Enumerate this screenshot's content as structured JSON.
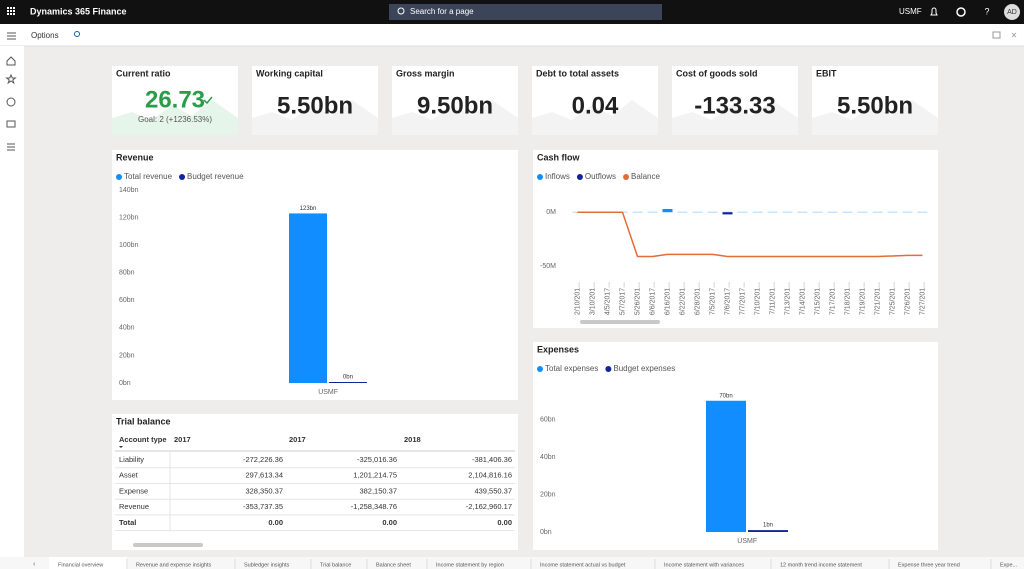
{
  "header": {
    "app": "Dynamics 365 Finance",
    "search": "Search for a page",
    "company": "USMF",
    "avatar": "AD"
  },
  "toolbar": {
    "options": "Options"
  },
  "kpis": [
    {
      "title": "Current ratio",
      "value": "26.73",
      "goal": "Goal: 2 (+1236.53%)"
    },
    {
      "title": "Working capital",
      "value": "5.50bn"
    },
    {
      "title": "Gross margin",
      "value": "9.50bn"
    },
    {
      "title": "Debt to total assets",
      "value": "0.04"
    },
    {
      "title": "Cost of goods sold",
      "value": "-133.33"
    },
    {
      "title": "EBIT",
      "value": "5.50bn"
    }
  ],
  "revenue": {
    "type": "bar",
    "title": "Revenue",
    "categories": [
      "USMF"
    ],
    "series": [
      {
        "name": "Total revenue",
        "color": "#118dff",
        "values": [
          123
        ],
        "value_labels": [
          "123bn"
        ]
      },
      {
        "name": "Budget revenue",
        "color": "#12239e",
        "values": [
          0
        ],
        "value_labels": [
          "0bn"
        ]
      }
    ],
    "ylim": [
      0,
      140
    ],
    "yticks": [
      {
        "value": 0,
        "label": "0bn"
      },
      {
        "value": 20,
        "label": "20bn"
      },
      {
        "value": 40,
        "label": "40bn"
      },
      {
        "value": 60,
        "label": "60bn"
      },
      {
        "value": 80,
        "label": "80bn"
      },
      {
        "value": 100,
        "label": "100bn"
      },
      {
        "value": 120,
        "label": "120bn"
      },
      {
        "value": 140,
        "label": "140bn"
      }
    ]
  },
  "cash_flow": {
    "type": "combo",
    "title": "Cash flow",
    "categories": [
      "2/10/201...",
      "3/10/201...",
      "4/5/2017...",
      "5/7/2017...",
      "5/26/201...",
      "6/6/2017...",
      "6/16/201...",
      "6/22/201...",
      "6/28/201...",
      "7/5/2017...",
      "7/6/2017...",
      "7/7/2017...",
      "7/10/201...",
      "7/11/201...",
      "7/13/201...",
      "7/14/201...",
      "7/15/201...",
      "7/17/201...",
      "7/18/201...",
      "7/19/201...",
      "7/21/201...",
      "7/25/201...",
      "7/26/201...",
      "7/27/201..."
    ],
    "series": [
      {
        "name": "Inflows",
        "color": "#118dff",
        "values": [
          0.5,
          0.5,
          0.5,
          0.5,
          0.5,
          0.5,
          3,
          0.5,
          0.5,
          0.5,
          0.5,
          0.5,
          0.5,
          0.5,
          0.5,
          0.5,
          0.5,
          0.5,
          0.5,
          0.5,
          0.5,
          0.5,
          0.5,
          0.5
        ]
      },
      {
        "name": "Outflows",
        "color": "#12239e",
        "values": [
          0,
          0,
          0,
          0,
          0,
          0,
          0,
          0,
          0,
          0,
          -2,
          0,
          0,
          0,
          0,
          0,
          0,
          0,
          0,
          0,
          0,
          0,
          0,
          0
        ]
      },
      {
        "name": "Balance",
        "color": "#e66c37",
        "values": [
          0,
          0,
          0,
          0,
          -41,
          -41,
          -39,
          -39,
          -39,
          -39,
          -41,
          -41,
          -41,
          -41,
          -41,
          -41,
          -41,
          -41,
          -41,
          -41,
          -41,
          -40.5,
          -40,
          -40
        ]
      }
    ],
    "ylim": [
      -60,
      28
    ],
    "yticks": [
      {
        "value": 0,
        "label": "0M"
      },
      {
        "value": -50,
        "label": "-50M"
      }
    ]
  },
  "expenses": {
    "type": "bar",
    "title": "Expenses",
    "categories": [
      "USMF"
    ],
    "series": [
      {
        "name": "Total expenses",
        "color": "#118dff",
        "values": [
          70
        ],
        "value_labels": [
          "70bn"
        ]
      },
      {
        "name": "Budget expenses",
        "color": "#12239e",
        "values": [
          1
        ],
        "value_labels": [
          "1bn"
        ]
      }
    ],
    "ylim": [
      0,
      80
    ],
    "yticks": [
      {
        "value": 0,
        "label": "0bn"
      },
      {
        "value": 20,
        "label": "20bn"
      },
      {
        "value": 40,
        "label": "40bn"
      },
      {
        "value": 60,
        "label": "60bn"
      }
    ]
  },
  "trial_balance": {
    "title": "Trial balance",
    "columns": [
      "Account type",
      "2017",
      "2017",
      "2018"
    ],
    "rows": [
      [
        "Liability",
        "-272,226.36",
        "-325,016.36",
        "-381,406.36"
      ],
      [
        "Asset",
        "297,613.34",
        "1,201,214.75",
        "2,104,816.16"
      ],
      [
        "Expense",
        "328,350.37",
        "382,150.37",
        "439,550.37"
      ],
      [
        "Revenue",
        "-353,737.35",
        "-1,258,348.76",
        "-2,162,960.17"
      ],
      [
        "Total",
        "0.00",
        "0.00",
        "0.00"
      ]
    ]
  },
  "tabs": [
    "Financial overview",
    "Revenue and expense insights",
    "Subledger insights",
    "Trial balance",
    "Balance sheet",
    "Income statement by region",
    "Income statement actual vs budget",
    "Income statement with variances",
    "12 month trend income statement",
    "Expense three year trend",
    "Expe..."
  ]
}
